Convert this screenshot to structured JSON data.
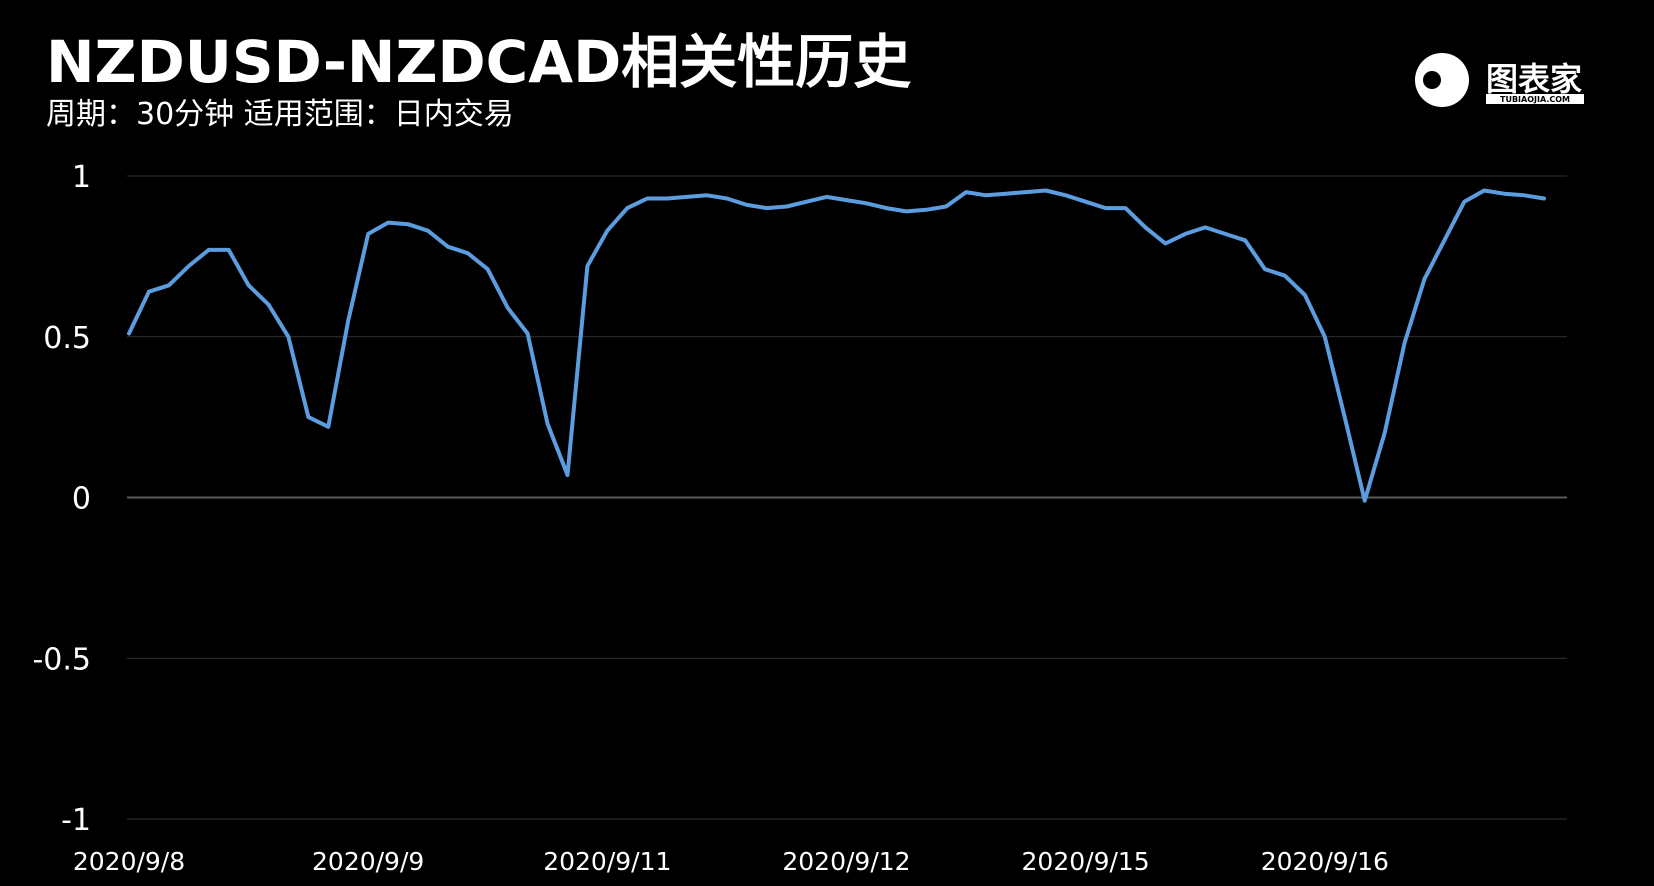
{
  "chart_data": {
    "type": "line",
    "title": "NZDUSD-NZDCAD相关性历史",
    "subtitle": "周期：30分钟  适用范围：日内交易",
    "logo": {
      "name": "图表家",
      "url": "TUBIAOJIA.COM"
    },
    "categories": [
      "2020/9/8",
      null,
      null,
      null,
      null,
      null,
      null,
      null,
      null,
      null,
      null,
      null,
      "2020/9/9",
      null,
      null,
      null,
      null,
      null,
      null,
      null,
      null,
      null,
      null,
      null,
      "2020/9/11",
      null,
      null,
      null,
      null,
      null,
      null,
      null,
      null,
      null,
      null,
      null,
      "2020/9/12",
      null,
      null,
      null,
      null,
      null,
      null,
      null,
      null,
      null,
      null,
      null,
      "2020/9/15",
      null,
      null,
      null,
      null,
      null,
      null,
      null,
      null,
      null,
      null,
      null,
      "2020/9/16",
      null,
      null,
      null,
      null,
      null,
      null,
      null,
      null,
      null,
      null,
      null
    ],
    "series": [
      {
        "name": "相关性",
        "color": "#5b9ddf",
        "values": [
          0.51,
          0.64,
          0.66,
          0.72,
          0.77,
          0.77,
          0.66,
          0.6,
          0.5,
          0.25,
          0.22,
          0.55,
          0.82,
          0.855,
          0.85,
          0.83,
          0.78,
          0.76,
          0.71,
          0.59,
          0.51,
          0.23,
          0.07,
          0.72,
          0.83,
          0.9,
          0.93,
          0.93,
          0.935,
          0.94,
          0.93,
          0.91,
          0.9,
          0.905,
          0.92,
          0.935,
          0.925,
          0.915,
          0.9,
          0.89,
          0.895,
          0.905,
          0.95,
          0.94,
          0.945,
          0.95,
          0.955,
          0.94,
          0.92,
          0.9,
          0.9,
          0.84,
          0.79,
          0.82,
          0.84,
          0.82,
          0.8,
          0.71,
          0.69,
          0.63,
          0.5,
          0.25,
          -0.01,
          0.2,
          0.48,
          0.68,
          0.8,
          0.92,
          0.955,
          0.945,
          0.94,
          0.93
        ]
      }
    ],
    "ylim": [
      -1,
      1
    ],
    "yticks": [
      -1,
      -0.5,
      0,
      0.5,
      1
    ],
    "grid": true
  }
}
